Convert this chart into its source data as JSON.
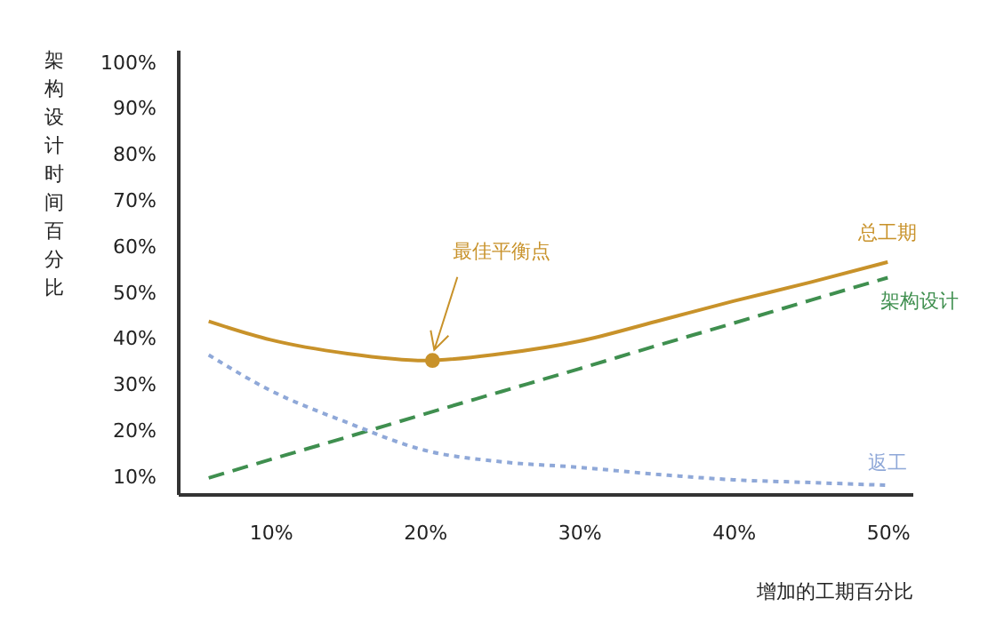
{
  "chart_data": {
    "type": "line",
    "xlabel": "增加的工期百分比",
    "ylabel": "架构设计时间百分比",
    "xlim": [
      4,
      51.6
    ],
    "ylim": [
      6.5,
      103
    ],
    "xticks": [
      {
        "value": 10,
        "label": "10%"
      },
      {
        "value": 20,
        "label": "20%"
      },
      {
        "value": 30,
        "label": "30%"
      },
      {
        "value": 40,
        "label": "40%"
      },
      {
        "value": 50,
        "label": "50%"
      }
    ],
    "yticks": [
      {
        "value": 10,
        "label": "10%"
      },
      {
        "value": 20,
        "label": "20%"
      },
      {
        "value": 30,
        "label": "30%"
      },
      {
        "value": 40,
        "label": "40%"
      },
      {
        "value": 50,
        "label": "50%"
      },
      {
        "value": 60,
        "label": "60%"
      },
      {
        "value": 70,
        "label": "70%"
      },
      {
        "value": 80,
        "label": "80%"
      },
      {
        "value": 90,
        "label": "90%"
      },
      {
        "value": 100,
        "label": "100%"
      }
    ],
    "grid": false,
    "x": [
      6,
      10,
      15,
      20,
      25,
      30,
      35,
      40,
      45,
      50
    ],
    "series": [
      {
        "name": "总工期",
        "color": "#c8922a",
        "line_style": "solid",
        "values": [
          44,
          40,
          37,
          35.5,
          37,
          39.7,
          44,
          48.4,
          52.5,
          56.9
        ]
      },
      {
        "name": "架构设计",
        "color": "#3f8f4f",
        "line_style": "dashed",
        "values": [
          10,
          14.0,
          18.9,
          23.9,
          28.8,
          33.7,
          38.7,
          43.6,
          48.6,
          53.5
        ]
      },
      {
        "name": "返工",
        "color": "#8fa8d8",
        "line_style": "dotted",
        "values": [
          36.7,
          29,
          22,
          16,
          13.5,
          12.3,
          10.8,
          9.6,
          9,
          8.4
        ]
      },
      {
        "type": "scatter",
        "color": "#c8922a",
        "marker": "circle",
        "x": [
          20.5
        ],
        "values": [
          35.5
        ]
      }
    ],
    "annotations": [
      {
        "text": "最佳平衡点",
        "x": 20.5,
        "y": 35.5
      }
    ]
  }
}
